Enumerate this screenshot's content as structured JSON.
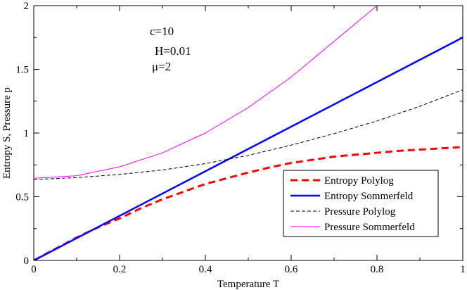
{
  "chart_data": {
    "type": "line",
    "title": "",
    "xlabel": "Temperature T",
    "ylabel": "Entropy S, Pressure p",
    "xlim": [
      0,
      1
    ],
    "ylim": [
      0,
      2
    ],
    "xticks": [
      "0",
      "0.2",
      "0.4",
      "0.6",
      "0.8",
      "1"
    ],
    "yticks": [
      "0",
      "0.5",
      "1",
      "1.5",
      "2"
    ],
    "xtick_values": [
      0,
      0.2,
      0.4,
      0.6,
      0.8,
      1
    ],
    "ytick_values": [
      0,
      0.5,
      1,
      1.5,
      2
    ],
    "grid": false,
    "legend_position": "bottom-right",
    "annotations": [
      "c=10",
      "H=0.01",
      "μ=2"
    ],
    "series": [
      {
        "name": "Entropy Polylog",
        "color": "#ff0000",
        "style": "dashed-thick",
        "x": [
          0,
          0.05,
          0.1,
          0.15,
          0.2,
          0.25,
          0.3,
          0.35,
          0.4,
          0.45,
          0.5,
          0.55,
          0.6,
          0.65,
          0.7,
          0.75,
          0.8,
          0.85,
          0.9,
          0.95,
          1.0
        ],
        "y": [
          0,
          0.09,
          0.18,
          0.26,
          0.33,
          0.41,
          0.48,
          0.54,
          0.6,
          0.645,
          0.69,
          0.73,
          0.765,
          0.79,
          0.815,
          0.83,
          0.845,
          0.86,
          0.87,
          0.88,
          0.89
        ]
      },
      {
        "name": "Entropy Sommerfeld",
        "color": "#0000ff",
        "style": "solid-thick",
        "x": [
          0,
          1
        ],
        "y": [
          0,
          1.75
        ]
      },
      {
        "name": "Pressure Polylog",
        "color": "#000000",
        "style": "dashed-thin",
        "x": [
          0,
          0.1,
          0.2,
          0.3,
          0.4,
          0.5,
          0.6,
          0.7,
          0.8,
          0.9,
          1.0
        ],
        "y": [
          0.635,
          0.65,
          0.675,
          0.71,
          0.76,
          0.825,
          0.905,
          0.995,
          1.095,
          1.21,
          1.34
        ]
      },
      {
        "name": "Pressure Sommerfeld",
        "color": "#ff00ff",
        "style": "solid-thin",
        "x": [
          0,
          0.1,
          0.2,
          0.3,
          0.4,
          0.5,
          0.6,
          0.7,
          0.8
        ],
        "y": [
          0.645,
          0.665,
          0.735,
          0.845,
          1.0,
          1.2,
          1.44,
          1.72,
          2.0
        ]
      }
    ]
  }
}
